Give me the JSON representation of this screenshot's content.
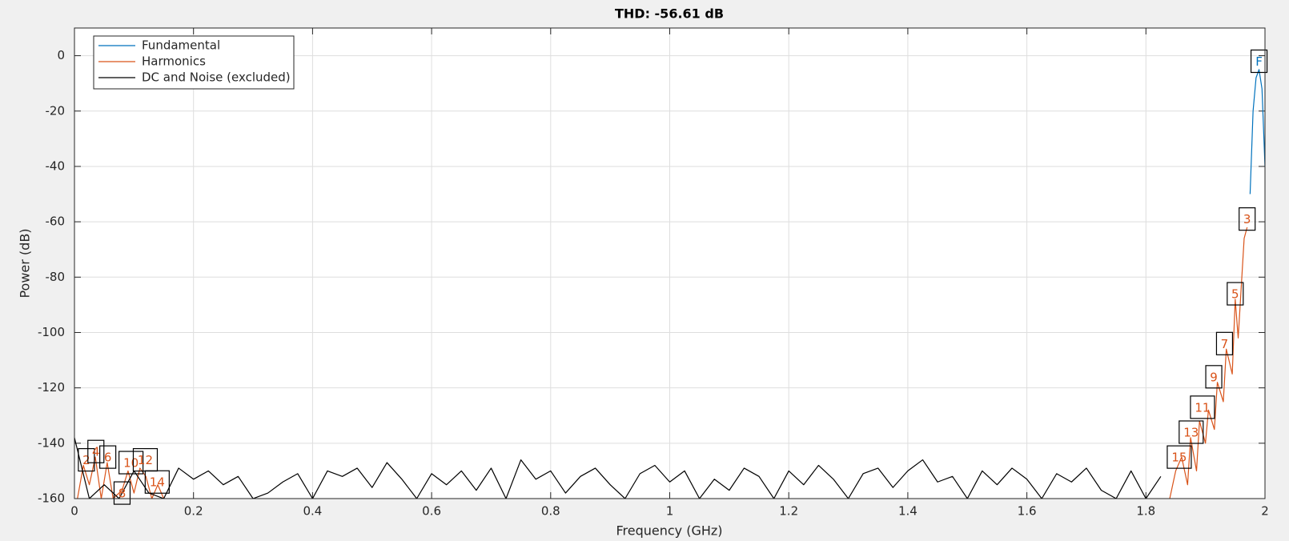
{
  "chart_data": {
    "type": "line",
    "title": "THD: -56.61 dB",
    "xlabel": "Frequency (GHz)",
    "ylabel": "Power (dB)",
    "xlim": [
      0,
      2
    ],
    "ylim": [
      -160,
      10
    ],
    "xticks": [
      0,
      0.2,
      0.4,
      0.6,
      0.8,
      1,
      1.2,
      1.4,
      1.6,
      1.8,
      2
    ],
    "yticks": [
      -160,
      -140,
      -120,
      -100,
      -80,
      -60,
      -40,
      -20,
      0
    ],
    "grid": true,
    "legend": "upper left",
    "series": [
      {
        "name": "Fundamental",
        "color": "#0072bd",
        "x": [
          1.975,
          1.98,
          1.985,
          1.99,
          1.995,
          2
        ],
        "values": [
          -50,
          -20,
          -8,
          -5,
          -12,
          -40
        ]
      },
      {
        "name": "Harmonics",
        "color": "#d95319",
        "x": [
          0.005,
          0.015,
          0.025,
          0.035,
          0.045,
          0.055,
          0.065,
          0.08,
          0.09,
          0.1,
          0.11,
          0.12,
          0.13,
          0.14,
          0.15,
          1,
          1.84,
          1.85,
          1.86,
          1.87,
          1.875,
          1.885,
          1.89,
          1.9,
          1.905,
          1.915,
          1.92,
          1.93,
          1.935,
          1.945,
          1.95,
          1.955,
          1.965,
          1.97
        ],
        "values": [
          -160,
          -148,
          -155,
          -145,
          -160,
          -147,
          -160,
          -157,
          -150,
          -158,
          -149,
          -152,
          -160,
          -155,
          -160,
          null,
          -160,
          -150,
          -145,
          -155,
          -138,
          -150,
          -132,
          -140,
          -128,
          -135,
          -118,
          -125,
          -106,
          -115,
          -88,
          -102,
          -66,
          -62
        ]
      },
      {
        "name": "DC and Noise (excluded)",
        "color": "#000000",
        "x": [
          0,
          0.025,
          0.05,
          0.075,
          0.1,
          0.125,
          0.15,
          0.175,
          0.2,
          0.225,
          0.25,
          0.275,
          0.3,
          0.325,
          0.35,
          0.375,
          0.4,
          0.425,
          0.45,
          0.475,
          0.5,
          0.525,
          0.55,
          0.575,
          0.6,
          0.625,
          0.65,
          0.675,
          0.7,
          0.725,
          0.75,
          0.775,
          0.8,
          0.825,
          0.85,
          0.875,
          0.9,
          0.925,
          0.95,
          0.975,
          1,
          1.025,
          1.05,
          1.075,
          1.1,
          1.125,
          1.15,
          1.175,
          1.2,
          1.225,
          1.25,
          1.275,
          1.3,
          1.325,
          1.35,
          1.375,
          1.4,
          1.425,
          1.45,
          1.475,
          1.5,
          1.525,
          1.55,
          1.575,
          1.6,
          1.625,
          1.65,
          1.675,
          1.7,
          1.725,
          1.75,
          1.775,
          1.8,
          1.825
        ],
        "values": [
          -138,
          -160,
          -155,
          -160,
          -150,
          -158,
          -160,
          -149,
          -153,
          -150,
          -155,
          -152,
          -160,
          -158,
          -154,
          -151,
          -160,
          -150,
          -152,
          -149,
          -156,
          -147,
          -153,
          -160,
          -151,
          -155,
          -150,
          -157,
          -149,
          -160,
          -146,
          -153,
          -150,
          -158,
          -152,
          -149,
          -155,
          -160,
          -151,
          -148,
          -154,
          -150,
          -160,
          -153,
          -157,
          -149,
          -152,
          -160,
          -150,
          -155,
          -148,
          -153,
          -160,
          -151,
          -149,
          -156,
          -150,
          -146,
          -154,
          -152,
          -160,
          -150,
          -155,
          -149,
          -153,
          -160,
          -151,
          -154,
          -149,
          -157,
          -160,
          -150,
          -160,
          -152
        ]
      }
    ],
    "annotations": [
      {
        "text": "F",
        "x": 1.99,
        "y": -2,
        "color": "#0072bd"
      },
      {
        "text": "3",
        "x": 1.97,
        "y": -59,
        "color": "#d95319"
      },
      {
        "text": "5",
        "x": 1.95,
        "y": -86,
        "color": "#d95319"
      },
      {
        "text": "7",
        "x": 1.932,
        "y": -104,
        "color": "#d95319"
      },
      {
        "text": "9",
        "x": 1.914,
        "y": -116,
        "color": "#d95319"
      },
      {
        "text": "11",
        "x": 1.895,
        "y": -127,
        "color": "#d95319"
      },
      {
        "text": "13",
        "x": 1.876,
        "y": -136,
        "color": "#d95319"
      },
      {
        "text": "15",
        "x": 1.856,
        "y": -145,
        "color": "#d95319"
      },
      {
        "text": "2",
        "x": 0.02,
        "y": -146,
        "color": "#d95319"
      },
      {
        "text": "4",
        "x": 0.036,
        "y": -143,
        "color": "#d95319"
      },
      {
        "text": "6",
        "x": 0.056,
        "y": -145,
        "color": "#d95319"
      },
      {
        "text": "10",
        "x": 0.095,
        "y": -147,
        "color": "#d95319"
      },
      {
        "text": "8",
        "x": 0.08,
        "y": -158,
        "color": "#d95319"
      },
      {
        "text": "12",
        "x": 0.119,
        "y": -146,
        "color": "#d95319"
      },
      {
        "text": "14",
        "x": 0.139,
        "y": -154,
        "color": "#d95319"
      }
    ]
  }
}
